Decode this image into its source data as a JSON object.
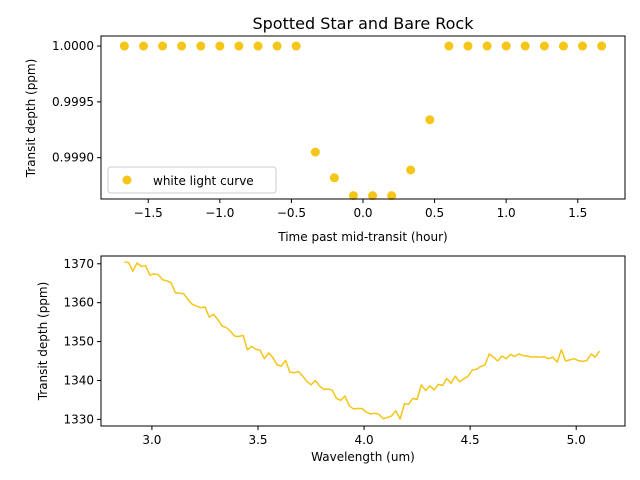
{
  "chart_data": [
    {
      "type": "scatter",
      "title": "Spotted Star and Bare Rock",
      "xlabel": "Time past mid-transit (hour)",
      "ylabel": "Transit depth (ppm)",
      "xlim": [
        -1.83,
        1.83
      ],
      "ylim": [
        0.99863,
        1.00009
      ],
      "xticks": [
        -1.5,
        -1.0,
        -0.5,
        0.0,
        0.5,
        1.0,
        1.5
      ],
      "xtick_labels": [
        "−1.5",
        "−1.0",
        "−0.5",
        "0.0",
        "0.5",
        "1.0",
        "1.5"
      ],
      "yticks": [
        0.999,
        0.9995,
        1.0
      ],
      "ytick_labels": [
        "0.9990",
        "0.9995",
        "1.0000"
      ],
      "grid": false,
      "legend_position": "lower-left",
      "series": [
        {
          "name": "white light curve",
          "color": "#f5c518",
          "x": [
            -1.667,
            -1.533,
            -1.4,
            -1.267,
            -1.133,
            -1.0,
            -0.867,
            -0.733,
            -0.6,
            -0.467,
            -0.333,
            -0.2,
            -0.067,
            0.067,
            0.2,
            0.333,
            0.467,
            0.6,
            0.733,
            0.867,
            1.0,
            1.133,
            1.267,
            1.4,
            1.533,
            1.667
          ],
          "y": [
            1.0,
            1.0,
            1.0,
            1.0,
            1.0,
            1.0,
            1.0,
            1.0,
            1.0,
            1.0,
            0.99905,
            0.99882,
            0.99866,
            0.99866,
            0.99866,
            0.99889,
            0.99934,
            1.0,
            1.0,
            1.0,
            1.0,
            1.0,
            1.0,
            1.0,
            1.0,
            1.0
          ]
        }
      ]
    },
    {
      "type": "line",
      "title": "",
      "xlabel": "Wavelength (um)",
      "ylabel": "Transit depth (ppm)",
      "xlim": [
        2.76,
        5.23
      ],
      "ylim": [
        1328.3,
        1372.0
      ],
      "xticks": [
        3.0,
        3.5,
        4.0,
        4.5,
        5.0
      ],
      "xtick_labels": [
        "3.0",
        "3.5",
        "4.0",
        "4.5",
        "5.0"
      ],
      "yticks": [
        1330,
        1340,
        1350,
        1360,
        1370
      ],
      "ytick_labels": [
        "1330",
        "1340",
        "1350",
        "1360",
        "1370"
      ],
      "grid": false,
      "series": [
        {
          "color": "#f5c518",
          "x": [
            2.87,
            2.89,
            2.91,
            2.93,
            2.95,
            2.97,
            2.99,
            3.01,
            3.03,
            3.05,
            3.07,
            3.09,
            3.11,
            3.13,
            3.15,
            3.17,
            3.19,
            3.21,
            3.23,
            3.25,
            3.27,
            3.29,
            3.31,
            3.33,
            3.35,
            3.37,
            3.39,
            3.41,
            3.43,
            3.45,
            3.47,
            3.49,
            3.51,
            3.53,
            3.55,
            3.57,
            3.59,
            3.61,
            3.63,
            3.65,
            3.67,
            3.69,
            3.71,
            3.73,
            3.75,
            3.77,
            3.79,
            3.81,
            3.83,
            3.85,
            3.87,
            3.89,
            3.91,
            3.93,
            3.95,
            3.97,
            3.99,
            4.01,
            4.03,
            4.05,
            4.07,
            4.09,
            4.11,
            4.13,
            4.15,
            4.17,
            4.19,
            4.21,
            4.23,
            4.25,
            4.27,
            4.29,
            4.31,
            4.33,
            4.35,
            4.37,
            4.39,
            4.41,
            4.43,
            4.45,
            4.47,
            4.49,
            4.51,
            4.53,
            4.55,
            4.57,
            4.59,
            4.61,
            4.63,
            4.65,
            4.67,
            4.69,
            4.71,
            4.73,
            4.75,
            4.77,
            4.79,
            4.81,
            4.83,
            4.85,
            4.87,
            4.89,
            4.91,
            4.93,
            4.95,
            4.97,
            4.99,
            5.01,
            5.03,
            5.05,
            5.07,
            5.09,
            5.11
          ],
          "y": [
            1370.5,
            1370.3,
            1368.1,
            1370.2,
            1369.3,
            1369.5,
            1367.1,
            1367.4,
            1367.2,
            1365.9,
            1365.6,
            1365.2,
            1362.6,
            1362.4,
            1362.3,
            1360.8,
            1359.6,
            1359.1,
            1358.7,
            1358.9,
            1356.3,
            1357.0,
            1355.7,
            1354.0,
            1353.6,
            1352.7,
            1351.4,
            1351.3,
            1351.6,
            1347.9,
            1348.8,
            1348.0,
            1347.8,
            1345.6,
            1347.1,
            1345.9,
            1344.0,
            1343.7,
            1345.2,
            1342.1,
            1342.0,
            1342.3,
            1341.2,
            1339.8,
            1338.9,
            1340.0,
            1338.6,
            1337.7,
            1337.8,
            1337.5,
            1335.4,
            1334.9,
            1336.0,
            1333.5,
            1332.7,
            1332.8,
            1332.8,
            1331.9,
            1331.4,
            1331.6,
            1331.3,
            1330.2,
            1330.5,
            1330.9,
            1332.2,
            1330.1,
            1334.0,
            1333.9,
            1335.4,
            1335.1,
            1338.9,
            1337.4,
            1338.6,
            1337.6,
            1339.0,
            1338.7,
            1340.5,
            1339.3,
            1341.1,
            1339.7,
            1340.4,
            1341.1,
            1342.7,
            1342.9,
            1343.6,
            1344.0,
            1346.8,
            1346.0,
            1345.0,
            1346.3,
            1345.6,
            1346.7,
            1346.2,
            1346.8,
            1346.4,
            1346.3,
            1346.0,
            1346.1,
            1346.0,
            1346.1,
            1345.6,
            1346.0,
            1344.7,
            1347.9,
            1345.0,
            1345.3,
            1345.6,
            1345.1,
            1344.9,
            1345.1,
            1346.8,
            1346.0,
            1347.6
          ]
        }
      ]
    }
  ]
}
